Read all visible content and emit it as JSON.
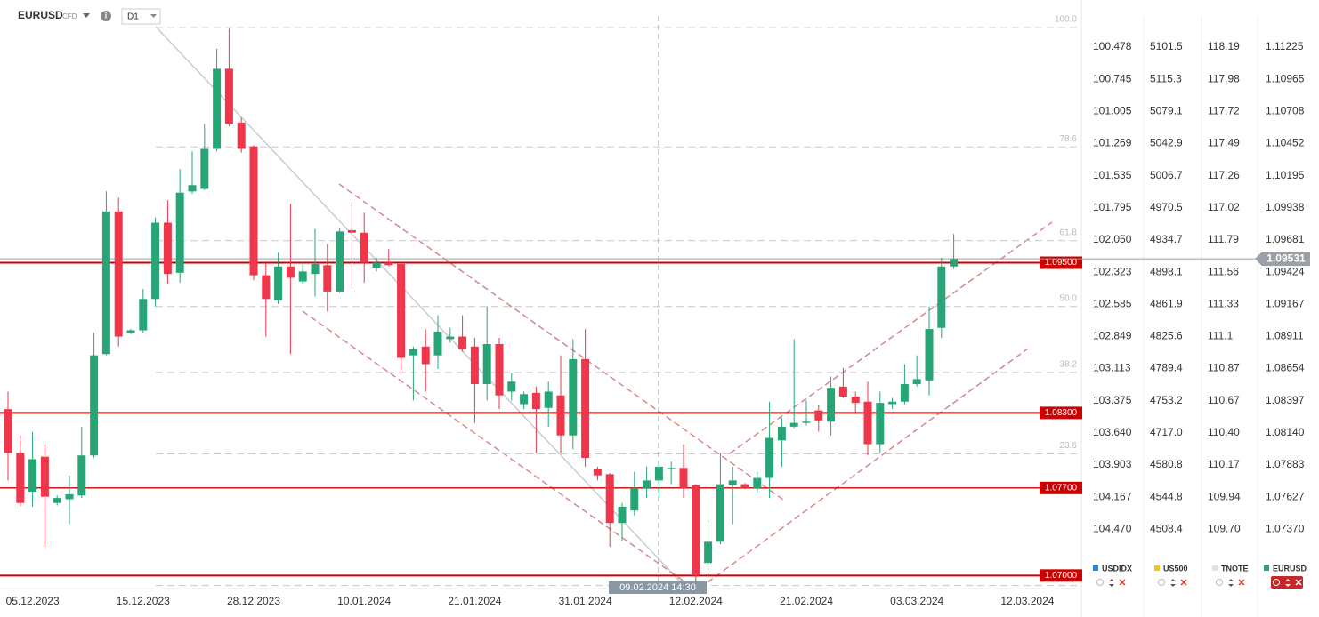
{
  "header": {
    "symbol": "EURUSD",
    "kind": "CFD",
    "timeframe": "D1"
  },
  "chart_data": {
    "type": "candlestick",
    "categories": [
      null,
      null,
      "05.12.2023",
      null,
      null,
      null,
      null,
      null,
      null,
      null,
      null,
      "15.12.2023",
      null,
      null,
      null,
      null,
      null,
      null,
      null,
      null,
      "28.12.2023",
      null,
      null,
      null,
      null,
      null,
      null,
      null,
      null,
      "10.01.2024",
      null,
      null,
      null,
      null,
      null,
      null,
      null,
      null,
      "21.01.2024",
      null,
      null,
      null,
      null,
      null,
      null,
      null,
      null,
      "31.01.2024",
      null,
      null,
      null,
      null,
      null,
      null,
      null,
      null,
      "12.02.2024",
      null,
      null,
      null,
      null,
      null,
      null,
      null,
      null,
      "21.02.2024",
      null,
      null,
      null,
      null,
      null,
      null,
      null,
      null,
      "03.03.2024",
      null,
      null,
      null,
      null,
      null,
      null,
      null,
      null,
      "12.03.2024",
      null
    ],
    "open": [
      1.0833,
      1.0798,
      1.0767,
      1.0795,
      1.0758,
      1.0761,
      1.0764,
      1.0796,
      1.0877,
      1.0991,
      1.0894,
      1.0896,
      1.0921,
      1.0982,
      1.0942,
      1.1007,
      1.1009,
      1.1041,
      1.1105,
      1.1062,
      1.1043,
      1.094,
      1.092,
      1.0947,
      1.0935,
      1.0941,
      1.0948,
      1.0927,
      1.0976,
      1.0974,
      1.0946,
      1.095,
      1.0949,
      1.0876,
      1.0883,
      1.0876,
      1.0889,
      1.0891,
      1.0883,
      1.0853,
      1.0885,
      1.0847,
      1.0837,
      1.0846,
      1.0834,
      1.0844,
      1.0812,
      1.0873,
      1.0785,
      1.0781,
      1.0742,
      1.0752,
      1.077,
      1.0776,
      1.0785,
      1.0786,
      1.0772,
      1.071,
      1.0727,
      1.0772,
      1.0773,
      1.077,
      1.0778,
      1.0808,
      1.0819,
      1.0822,
      1.0832,
      1.0823,
      1.0851,
      1.0843,
      1.0839,
      1.0805,
      1.0837,
      1.0839,
      1.0853,
      1.0856,
      1.0898,
      1.0947,
      null,
      null,
      null,
      null,
      null,
      null,
      null
    ],
    "high": [
      1.0847,
      1.0812,
      1.0815,
      1.0805,
      1.0764,
      1.078,
      1.0819,
      1.0894,
      1.1007,
      1.1002,
      1.0897,
      1.0929,
      1.0986,
      1.1,
      1.1025,
      1.1039,
      1.1061,
      1.1121,
      1.1137,
      1.1066,
      1.1044,
      1.095,
      1.0958,
      1.0997,
      1.095,
      1.0977,
      1.0965,
      1.0978,
      1.0999,
      1.099,
      1.0954,
      1.0961,
      1.0951,
      1.0883,
      1.0897,
      1.0908,
      1.0898,
      1.0908,
      1.089,
      1.0915,
      1.089,
      1.0862,
      1.0847,
      1.0851,
      1.0855,
      1.0876,
      1.0889,
      1.0897,
      1.0787,
      1.0782,
      1.0758,
      1.0783,
      1.0787,
      1.0789,
      1.0791,
      1.0805,
      1.0773,
      1.0744,
      1.0798,
      1.0787,
      1.0774,
      1.0783,
      1.0839,
      1.0826,
      1.0889,
      1.084,
      1.0836,
      1.0859,
      1.0866,
      1.0847,
      1.0855,
      1.0847,
      1.0842,
      1.0869,
      1.0876,
      1.0915,
      1.0954,
      1.0973,
      null,
      null,
      null,
      null,
      null,
      null,
      null
    ],
    "low": [
      1.0776,
      1.0755,
      1.0755,
      1.0723,
      1.0756,
      1.0741,
      1.0762,
      1.0794,
      1.0876,
      1.0883,
      1.0893,
      1.0894,
      1.0915,
      1.0933,
      1.0934,
      1.1005,
      1.1008,
      1.1039,
      1.1059,
      1.1038,
      1.0936,
      1.0891,
      1.0917,
      1.0877,
      1.0933,
      1.0923,
      1.0911,
      1.0926,
      1.0929,
      1.0934,
      1.0943,
      1.0947,
      1.0863,
      1.084,
      1.0847,
      1.0865,
      1.0886,
      1.0879,
      1.0822,
      1.084,
      1.0833,
      1.084,
      1.0833,
      1.0798,
      1.0819,
      1.0798,
      1.0801,
      1.0787,
      1.0776,
      1.0723,
      1.0728,
      1.0748,
      1.0762,
      1.0762,
      1.0773,
      1.0762,
      1.0691,
      1.0698,
      1.0725,
      1.0741,
      1.0769,
      1.0766,
      1.0762,
      1.0787,
      1.0818,
      1.082,
      1.0815,
      1.0812,
      1.0842,
      1.083,
      1.0796,
      1.0798,
      1.0833,
      1.0837,
      1.0851,
      1.0844,
      1.089,
      1.0945,
      null,
      null,
      null,
      null,
      null,
      null,
      null
    ],
    "close": [
      1.0798,
      1.0758,
      1.0793,
      1.0763,
      1.0762,
      1.0765,
      1.0796,
      1.0876,
      1.0991,
      1.0891,
      1.0896,
      1.0921,
      1.0982,
      1.0941,
      1.1006,
      1.1012,
      1.1041,
      1.1105,
      1.1061,
      1.1041,
      1.094,
      1.0921,
      1.0947,
      1.0938,
      1.0943,
      1.0949,
      1.0927,
      1.0975,
      1.0974,
      1.095,
      1.095,
      1.0948,
      1.0874,
      1.0881,
      1.0869,
      1.0895,
      1.0891,
      1.0881,
      1.0853,
      1.0885,
      1.0844,
      1.0855,
      1.0845,
      1.0833,
      1.0847,
      1.0812,
      1.0873,
      1.0794,
      1.078,
      1.0742,
      1.0755,
      1.077,
      1.0776,
      1.0787,
      1.0786,
      1.077,
      1.07,
      1.0727,
      1.0773,
      1.0776,
      1.077,
      1.0778,
      1.081,
      1.0819,
      1.0822,
      1.0823,
      1.0824,
      1.085,
      1.0843,
      1.0838,
      1.0805,
      1.0838,
      1.0839,
      1.0853,
      1.0857,
      1.0897,
      1.0947,
      1.0953,
      null,
      null,
      null,
      null,
      null,
      null,
      null
    ],
    "up_color": "#27a576",
    "down_color": "#f0364a",
    "ylim": [
      1.0691,
      1.116
    ],
    "yticks": [
      1.11225,
      1.10965,
      1.10708,
      1.10452,
      1.10195,
      1.09938,
      1.09681,
      1.09424,
      1.09167,
      1.08911,
      1.08654,
      1.08397,
      {
        "value": 1.0814,
        "label": "1.08140"
      },
      1.07883,
      1.07627,
      {
        "value": 1.0737,
        "label": "1.07370"
      }
    ],
    "levels": [
      {
        "value": 1.095,
        "label": "1.09500"
      },
      {
        "value": 1.083,
        "label": "1.08300"
      },
      {
        "value": 1.077,
        "label": "1.07700"
      },
      {
        "value": 1.07,
        "label": "1.07000"
      }
    ],
    "level_color": "#cc0000",
    "last_price": {
      "value": 1.09531,
      "label": "1.09531"
    },
    "fibonacci": {
      "high": 1.1138,
      "low": 1.0692,
      "levels": [
        {
          "value": 100,
          "label": "100.0"
        },
        78.6,
        61.8,
        {
          "value": 50,
          "label": "50.0"
        },
        38.2,
        23.6,
        0
      ]
    },
    "crosshair": "09.02.2024 14:30",
    "other_scales": [
      {
        "name": "USDIDX",
        "color": "#1e88e5",
        "ticks": [
          100.478,
          100.745,
          101.005,
          101.269,
          101.535,
          101.795,
          {
            "value": 102.05,
            "label": "102.050"
          },
          102.323,
          102.585,
          102.849,
          103.113,
          103.375,
          {
            "value": 103.64,
            "label": "103.640"
          },
          103.903,
          104.167,
          {
            "value": 104.47,
            "label": "104.470"
          }
        ]
      },
      {
        "name": "US500",
        "color": "#f5c518",
        "ticks": [
          5101.5,
          5115.3,
          5079.1,
          5042.9,
          5006.7,
          4970.5,
          4934.7,
          4898.1,
          4861.9,
          4825.6,
          4789.4,
          4753.2,
          {
            "value": 4717,
            "label": "4717.0"
          },
          4580.8,
          4544.8,
          4508.4
        ]
      },
      {
        "name": "TNOTE",
        "color": "#e0e0e0",
        "ticks": [
          118.19,
          117.98,
          117.72,
          117.49,
          117.26,
          117.02,
          111.79,
          111.56,
          111.33,
          111.1,
          110.87,
          110.67,
          {
            "value": 110.4,
            "label": "110.40"
          },
          110.17,
          109.94,
          {
            "value": 109.7,
            "label": "109.70"
          }
        ]
      }
    ],
    "legend_name": "EURUSD"
  }
}
